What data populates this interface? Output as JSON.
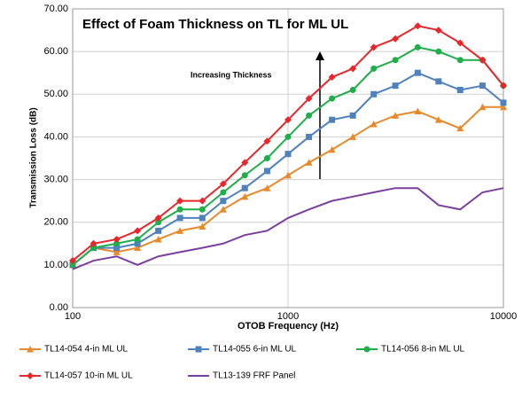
{
  "chart_data": {
    "type": "line",
    "title": "Effect of Foam Thickness on TL for ML UL",
    "x_label": "OTOB Frequency (Hz)",
    "y_label": "Transmission Loss (dB)",
    "annotation": "Increasing Thickness",
    "x": [
      100,
      125,
      160,
      200,
      250,
      315,
      400,
      500,
      630,
      800,
      1000,
      1250,
      1600,
      2000,
      2500,
      3150,
      4000,
      5000,
      6300,
      8000,
      10000
    ],
    "xscale": "log",
    "xlim": [
      100,
      10000
    ],
    "xticks": [
      100,
      1000,
      10000
    ],
    "ylim": [
      0,
      70
    ],
    "yticks": [
      {
        "value": 0,
        "label": "0.00"
      },
      {
        "value": 10,
        "label": "10.00"
      },
      {
        "value": 20,
        "label": "20.00"
      },
      {
        "value": 30,
        "label": "30.00"
      },
      {
        "value": 40,
        "label": "40.00"
      },
      {
        "value": 50,
        "label": "50.00"
      },
      {
        "value": 60,
        "label": "60.00"
      },
      {
        "value": 70,
        "label": "70.00"
      }
    ],
    "grid": true,
    "legend": "bottom",
    "series": [
      {
        "name": "TL14-054 4-in ML UL",
        "color": "#e8892b",
        "marker": "triangle",
        "values": [
          10,
          14,
          13,
          14,
          16,
          18,
          19,
          23,
          26,
          28,
          31,
          34,
          37,
          40,
          43,
          45,
          46,
          44,
          42,
          47,
          47
        ]
      },
      {
        "name": "TL14-055 6-in ML UL",
        "color": "#4f81bd",
        "marker": "square",
        "values": [
          10,
          14,
          14,
          15,
          18,
          21,
          21,
          25,
          28,
          32,
          36,
          40,
          44,
          45,
          50,
          52,
          55,
          53,
          51,
          52,
          48
        ]
      },
      {
        "name": "TL14-056 8-in ML UL",
        "color": "#1fae4a",
        "marker": "circle",
        "values": [
          10,
          14,
          15,
          16,
          20,
          23,
          23,
          27,
          31,
          35,
          40,
          45,
          49,
          51,
          56,
          58,
          61,
          60,
          58,
          58,
          52
        ]
      },
      {
        "name": "TL14-057 10-in ML UL",
        "color": "#e8262b",
        "marker": "diamond",
        "values": [
          11,
          15,
          16,
          18,
          21,
          25,
          25,
          29,
          34,
          39,
          44,
          49,
          54,
          56,
          61,
          63,
          66,
          65,
          62,
          58,
          52
        ]
      },
      {
        "name": "TL13-139 FRF Panel",
        "color": "#7b3f9e",
        "marker": "none",
        "values": [
          9,
          11,
          12,
          10,
          12,
          13,
          14,
          15,
          17,
          18,
          21,
          23,
          25,
          26,
          27,
          28,
          28,
          24,
          23,
          27,
          28
        ]
      }
    ]
  }
}
